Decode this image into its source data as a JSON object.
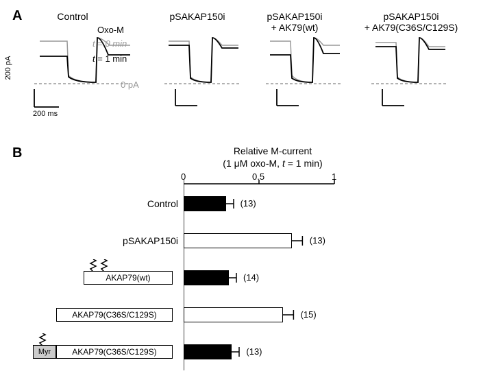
{
  "panelA": {
    "label": "A",
    "oxo_m_label": "Oxo-M",
    "conditions": [
      {
        "name": "Control"
      },
      {
        "name": "pSAKAP150i"
      },
      {
        "name": "pSAKAP150i\n+ AK79(wt)"
      },
      {
        "name": "pSAKAP150i\n+ AK79(C36S/C129S)"
      }
    ],
    "legend": {
      "t0": "t = 0 min",
      "t1": "t = 1 min",
      "zero": "0 pA"
    },
    "scale": {
      "y_label": "200 pA",
      "x_label": "200 ms"
    },
    "colors": {
      "trace_t0": "#999999",
      "trace_t1": "#000000",
      "dashed": "#999999"
    }
  },
  "panelB": {
    "label": "B",
    "axis_title_line1": "Relative M-current",
    "axis_title_line2": "(1 μM oxo-M, t = 1 min)",
    "ticks": [
      "0",
      "0.5",
      "1"
    ],
    "x_max": 1.0,
    "bars": [
      {
        "label": "Control",
        "value": 0.28,
        "err": 0.05,
        "n": "(13)",
        "fill": "#000000"
      },
      {
        "label": "pSAKAP150i",
        "value": 0.72,
        "err": 0.07,
        "n": "(13)",
        "fill": "#ffffff"
      },
      {
        "label": "",
        "value": 0.3,
        "err": 0.05,
        "n": "(14)",
        "fill": "#000000",
        "construct": "AKAP79(wt)",
        "zigzags": 2
      },
      {
        "label": "",
        "value": 0.66,
        "err": 0.07,
        "n": "(15)",
        "fill": "#ffffff",
        "construct": "AKAP79(C36S/C129S)",
        "zigzags": 0
      },
      {
        "label": "",
        "value": 0.32,
        "err": 0.05,
        "n": "(13)",
        "fill": "#000000",
        "construct": "AKAP79(C36S/C129S)",
        "myr": "Myr",
        "zigzags": 1
      }
    ],
    "colors": {
      "axis": "#000000"
    }
  }
}
